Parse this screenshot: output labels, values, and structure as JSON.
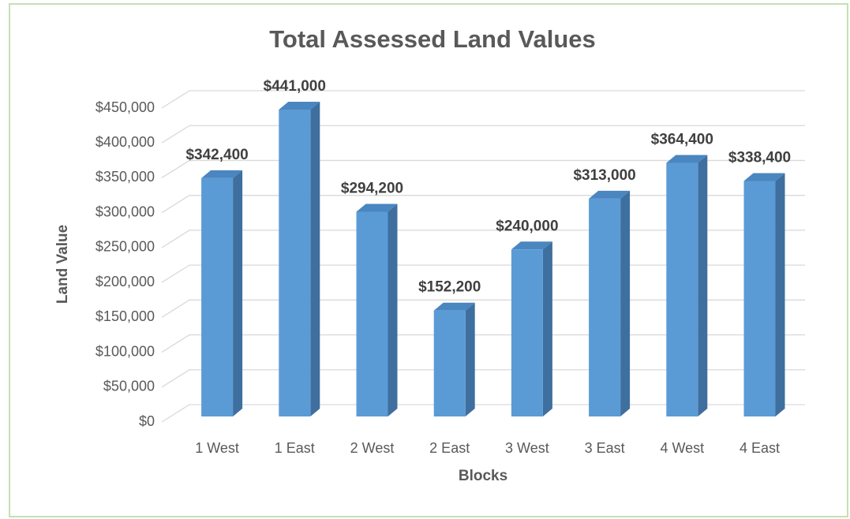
{
  "chart_data": {
    "type": "bar3d",
    "title": "Total Assessed Land Values",
    "x_label": "Blocks",
    "y_label": "Land Value",
    "categories": [
      "1 West",
      "1 East",
      "2 West",
      "2 East",
      "3 West",
      "3 East",
      "4 West",
      "4 East"
    ],
    "values": [
      342400,
      441000,
      294200,
      152200,
      240000,
      313000,
      364400,
      338400
    ],
    "value_labels": [
      "$342,400",
      "$441,000",
      "$294,200",
      "$152,200",
      "$240,000",
      "$313,000",
      "$364,400",
      "$338,400"
    ],
    "color": "#5b9bd5",
    "ylim": [
      0,
      450000
    ],
    "yticks": [
      {
        "value": 0,
        "label": "$0"
      },
      {
        "value": 50000,
        "label": "$50,000"
      },
      {
        "value": 100000,
        "label": "$100,000"
      },
      {
        "value": 150000,
        "label": "$150,000"
      },
      {
        "value": 200000,
        "label": "$200,000"
      },
      {
        "value": 250000,
        "label": "$250,000"
      },
      {
        "value": 300000,
        "label": "$300,000"
      },
      {
        "value": 350000,
        "label": "$350,000"
      },
      {
        "value": 400000,
        "label": "$400,000"
      },
      {
        "value": 450000,
        "label": "$450,000"
      }
    ],
    "grid": true
  }
}
